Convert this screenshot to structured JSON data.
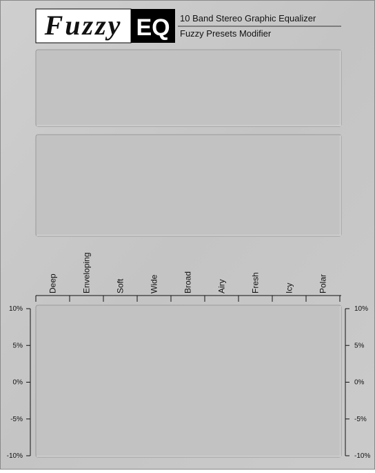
{
  "header": {
    "logo_left": "Fuzzy",
    "logo_right": "EQ",
    "title": "10 Band Stereo Graphic Equalizer",
    "subtitle": "Fuzzy Presets Modifier"
  },
  "presets": [
    "Deep",
    "Enveloping",
    "Soft",
    "Wide",
    "Broad",
    "Airy",
    "Fresh",
    "Icy",
    "Polar"
  ],
  "scale": {
    "labels": [
      "10%",
      "5%",
      "0%",
      "-5%",
      "-10%"
    ]
  }
}
